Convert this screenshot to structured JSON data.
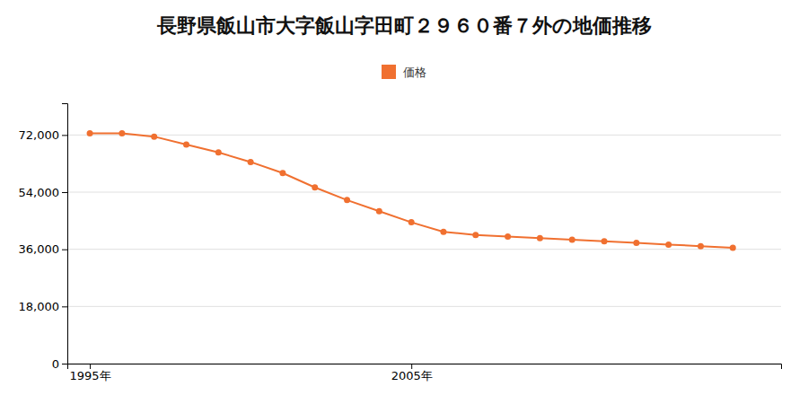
{
  "chart_data": {
    "type": "line",
    "title": "長野県飯山市大字飯山字田町２９６０番７外の地価推移",
    "x": [
      1995,
      1996,
      1997,
      1998,
      1999,
      2000,
      2001,
      2002,
      2003,
      2004,
      2005,
      2006,
      2007,
      2008,
      2009,
      2010,
      2011,
      2012,
      2013,
      2014,
      2015
    ],
    "series": [
      {
        "name": "価格",
        "color": "#f07030",
        "marker": "circle",
        "values": [
          72500,
          72500,
          71500,
          69000,
          66500,
          63500,
          60000,
          55500,
          51500,
          48000,
          44500,
          41500,
          40500,
          40000,
          39500,
          39000,
          38500,
          38000,
          37500,
          37000,
          36500
        ]
      }
    ],
    "xlim": [
      1994.3,
      2016.5
    ],
    "xticks": [
      {
        "value": 1995,
        "label": "1995年"
      },
      {
        "value": 2005,
        "label": "2005年"
      }
    ],
    "ylim": [
      0,
      82000
    ],
    "yticks": [
      0,
      {
        "value": 18000,
        "label": "18,000"
      },
      {
        "value": 36000,
        "label": "36,000"
      },
      {
        "value": 54000,
        "label": "54,000"
      },
      {
        "value": 72000,
        "label": "72,000"
      }
    ],
    "grid": true,
    "legend": "top"
  }
}
